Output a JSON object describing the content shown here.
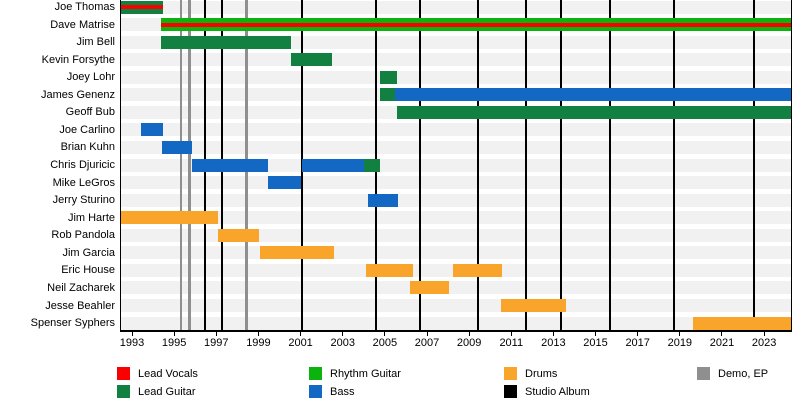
{
  "chart_data": {
    "type": "timeline",
    "description": "Band members timeline (gantt-style) with release markers",
    "axis": {
      "plot_start": 1992.5,
      "plot_end": 2024.3,
      "tick_start": 1993,
      "tick_end": 2023,
      "tick_step": 2,
      "tick_labels": [
        "1993",
        "1995",
        "1997",
        "1999",
        "2001",
        "2003",
        "2005",
        "2007",
        "2009",
        "2011",
        "2013",
        "2015",
        "2017",
        "2019",
        "2021",
        "2023"
      ]
    },
    "legend": {
      "columns": [
        [
          {
            "label": "Lead Vocals",
            "color": "#fa0000"
          },
          {
            "label": "Lead Guitar",
            "color": "#118040"
          }
        ],
        [
          {
            "label": "Rhythm Guitar",
            "color": "#0cb30c"
          },
          {
            "label": "Bass",
            "color": "#1268c2"
          }
        ],
        [
          {
            "label": "Drums",
            "color": "#f9a42a"
          },
          {
            "label": "Studio Album",
            "color": "#000000"
          }
        ],
        [
          {
            "label": "Demo, EP",
            "color": "#8f8f8f"
          }
        ]
      ]
    },
    "members": [
      {
        "name": "Joe Thomas",
        "segments": [
          {
            "start": 1992.5,
            "end": 1994.5,
            "role": "Lead Guitar",
            "stripe": "Lead Vocals"
          }
        ]
      },
      {
        "name": "Dave Matrise",
        "segments": [
          {
            "start": 1994.4,
            "end": 2024.3,
            "role": "Rhythm Guitar",
            "stripe": "Lead Vocals"
          }
        ]
      },
      {
        "name": "Jim Bell",
        "segments": [
          {
            "start": 1994.4,
            "end": 2000.55,
            "role": "Lead Guitar"
          }
        ]
      },
      {
        "name": "Kevin Forsythe",
        "segments": [
          {
            "start": 2000.55,
            "end": 2002.5,
            "role": "Lead Guitar"
          }
        ]
      },
      {
        "name": "Joey Lohr",
        "segments": [
          {
            "start": 2004.8,
            "end": 2005.6,
            "role": "Lead Guitar"
          }
        ]
      },
      {
        "name": "James Genenz",
        "segments": [
          {
            "start": 2004.8,
            "end": 2005.5,
            "role": "Lead Guitar"
          },
          {
            "start": 2005.5,
            "end": 2024.3,
            "role": "Bass"
          }
        ]
      },
      {
        "name": "Geoff Bub",
        "segments": [
          {
            "start": 2005.6,
            "end": 2024.3,
            "role": "Lead Guitar"
          }
        ]
      },
      {
        "name": "Joe Carlino",
        "segments": [
          {
            "start": 1993.45,
            "end": 1994.5,
            "role": "Bass"
          }
        ]
      },
      {
        "name": "Brian Kuhn",
        "segments": [
          {
            "start": 1994.45,
            "end": 1995.85,
            "role": "Bass"
          }
        ]
      },
      {
        "name": "Chris Djuricic",
        "segments": [
          {
            "start": 1995.85,
            "end": 1999.5,
            "role": "Bass"
          },
          {
            "start": 2001.1,
            "end": 2004.05,
            "role": "Bass"
          },
          {
            "start": 2004.05,
            "end": 2004.8,
            "role": "Lead Guitar"
          }
        ]
      },
      {
        "name": "Mike LeGros",
        "segments": [
          {
            "start": 1999.5,
            "end": 2001.05,
            "role": "Bass"
          }
        ]
      },
      {
        "name": "Jerry Sturino",
        "segments": [
          {
            "start": 2004.2,
            "end": 2005.65,
            "role": "Bass"
          }
        ]
      },
      {
        "name": "Jim Harte",
        "segments": [
          {
            "start": 1992.5,
            "end": 1997.1,
            "role": "Drums"
          }
        ]
      },
      {
        "name": "Rob Pandola",
        "segments": [
          {
            "start": 1997.1,
            "end": 1999.05,
            "role": "Drums"
          }
        ]
      },
      {
        "name": "Jim Garcia",
        "segments": [
          {
            "start": 1999.1,
            "end": 2002.6,
            "role": "Drums"
          }
        ]
      },
      {
        "name": "Eric House",
        "segments": [
          {
            "start": 2004.15,
            "end": 2006.35,
            "role": "Drums"
          },
          {
            "start": 2008.25,
            "end": 2010.6,
            "role": "Drums"
          }
        ]
      },
      {
        "name": "Neil Zacharek",
        "segments": [
          {
            "start": 2006.2,
            "end": 2008.05,
            "role": "Drums"
          }
        ]
      },
      {
        "name": "Jesse Beahler",
        "segments": [
          {
            "start": 2010.55,
            "end": 2013.6,
            "role": "Drums"
          }
        ]
      },
      {
        "name": "Spenser Syphers",
        "segments": [
          {
            "start": 2019.65,
            "end": 2024.3,
            "role": "Drums"
          }
        ]
      }
    ],
    "releases": {
      "studio_albums": [
        1996.5,
        1997.3,
        2001.1,
        2004.6,
        2006.7,
        2009.45,
        2011.7,
        2013.4,
        2015.7,
        2018.75,
        2022.55
      ],
      "demos_eps": [
        1995.35,
        1995.75,
        1998.45
      ]
    },
    "style": {
      "row_band_color": "#f1f1f1",
      "background": "#ffffff"
    }
  }
}
